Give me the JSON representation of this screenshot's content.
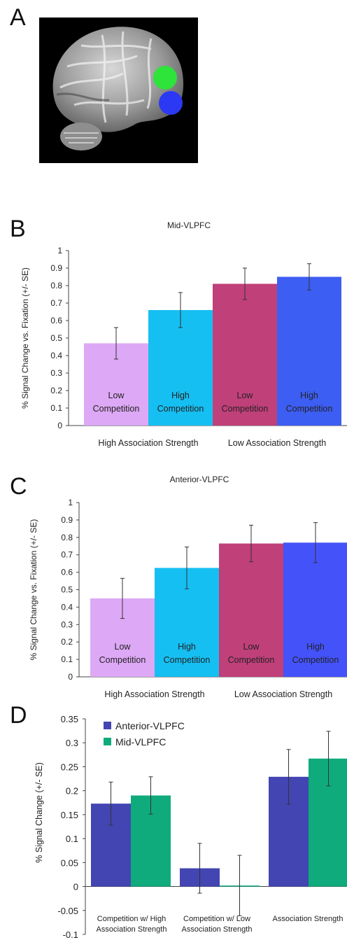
{
  "panel_letters": {
    "a": "A",
    "b": "B",
    "c": "C",
    "d": "D"
  },
  "chart_data": [
    {
      "type": "bar",
      "title": "Mid-VLPFC",
      "ylabel": "% Signal Change vs. Fixation (+/- SE)",
      "ylim": [
        0,
        1
      ],
      "yticks": [
        "0",
        "0.1",
        "0.2",
        "0.3",
        "0.4",
        "0.5",
        "0.6",
        "0.7",
        "0.8",
        "0.9",
        "1"
      ],
      "categories": [
        "Low Competition",
        "High Competition",
        "Low Competition",
        "High Competition"
      ],
      "bar_labels": [
        [
          "Low",
          "Competition"
        ],
        [
          "High",
          "Competition"
        ],
        [
          "Low",
          "Competition"
        ],
        [
          "High",
          "Competition"
        ]
      ],
      "values": [
        0.47,
        0.66,
        0.81,
        0.85
      ],
      "errors": [
        0.09,
        0.1,
        0.09,
        0.075
      ],
      "colors": [
        "#dda8f5",
        "#16bff2",
        "#c0407a",
        "#3d5ef2"
      ],
      "groups": [
        "High Association Strength",
        "Low Association Strength"
      ]
    },
    {
      "type": "bar",
      "title": "Anterior-VLPFC",
      "ylabel": "% Signal Change vs. Fixation (+/- SE)",
      "ylim": [
        0,
        1
      ],
      "yticks": [
        "0",
        "0.1",
        "0.2",
        "0.3",
        "0.4",
        "0.5",
        "0.6",
        "0.7",
        "0.8",
        "0.9",
        "1"
      ],
      "categories": [
        "Low Competition",
        "High Competition",
        "Low Competition",
        "High Competition"
      ],
      "bar_labels": [
        [
          "Low",
          "Competition"
        ],
        [
          "High",
          "Competition"
        ],
        [
          "Low",
          "Competition"
        ],
        [
          "High",
          "Competition"
        ]
      ],
      "values": [
        0.45,
        0.625,
        0.765,
        0.77
      ],
      "errors": [
        0.115,
        0.12,
        0.105,
        0.115
      ],
      "colors": [
        "#dda8f5",
        "#16bff2",
        "#c0407a",
        "#4452fa"
      ],
      "groups": [
        "High Association Strength",
        "Low Association Strength"
      ]
    },
    {
      "type": "bar",
      "title": "",
      "ylabel": "% Signal Change (+/- SE)",
      "ylim": [
        -0.1,
        0.35
      ],
      "yticks": [
        "-0.1",
        "-0.05",
        "0",
        "0.05",
        "0.1",
        "0.15",
        "0.2",
        "0.25",
        "0.3",
        "0.35"
      ],
      "categories": [
        [
          "Competition w/ High",
          "Association Strength"
        ],
        [
          "Competition w/ Low",
          "Association Strength"
        ],
        [
          "Association Strength",
          ""
        ]
      ],
      "series": [
        {
          "name": "Anterior-VLPFC",
          "color": "#4345b2",
          "values": [
            0.173,
            0.038,
            0.229
          ],
          "errors": [
            0.045,
            0.052,
            0.057
          ]
        },
        {
          "name": "Mid-VLPFC",
          "color": "#0fab7c",
          "values": [
            0.19,
            0.002,
            0.267
          ],
          "errors": [
            0.039,
            0.063,
            0.057
          ]
        }
      ],
      "legend": "top-left"
    }
  ]
}
